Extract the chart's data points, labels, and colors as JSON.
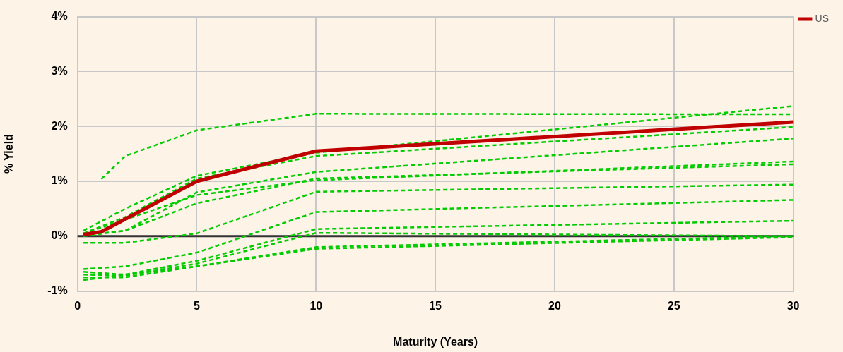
{
  "chart_data": {
    "type": "line",
    "xlabel": "Maturity (Years)",
    "ylabel": "% Yield",
    "xlim": [
      0,
      30
    ],
    "xticks": [
      0,
      5,
      10,
      15,
      20,
      25,
      30
    ],
    "ylim": [
      -1,
      4
    ],
    "yticks": [
      {
        "value": -1,
        "label": "-1%"
      },
      {
        "value": 0,
        "label": "0%"
      },
      {
        "value": 1,
        "label": "1%"
      },
      {
        "value": 2,
        "label": "2%"
      },
      {
        "value": 3,
        "label": "3%"
      },
      {
        "value": 4,
        "label": "4%"
      }
    ],
    "grid": true,
    "legend": "right",
    "marker": "none",
    "ref_lines": [
      {
        "axis": "y",
        "value": 0,
        "color": "#333333"
      }
    ],
    "series": [
      {
        "color": "#00cc00",
        "line_style": "dashed",
        "x": [
          1,
          2,
          5,
          10,
          30
        ],
        "values": [
          1.04,
          1.46,
          1.93,
          2.23,
          2.22
        ]
      },
      {
        "color": "#00cc00",
        "line_style": "dashed",
        "x": [
          0.25,
          2,
          5,
          10,
          30
        ],
        "values": [
          0.1,
          0.5,
          1.1,
          1.52,
          2.37
        ]
      },
      {
        "color": "#00cc00",
        "line_style": "dashed",
        "x": [
          0.25,
          2,
          5,
          10,
          30
        ],
        "values": [
          0.05,
          0.35,
          1.05,
          1.46,
          1.99
        ]
      },
      {
        "color": "#00cc00",
        "line_style": "dashed",
        "x": [
          0.25,
          2,
          5,
          10,
          30
        ],
        "values": [
          0.0,
          0.1,
          0.8,
          1.17,
          1.78
        ]
      },
      {
        "color": "#00cc00",
        "line_style": "dashed",
        "x": [
          0.25,
          2,
          5,
          10,
          30
        ],
        "values": [
          0.05,
          0.3,
          0.75,
          1.02,
          1.36
        ]
      },
      {
        "color": "#00cc00",
        "line_style": "dashed",
        "x": [
          0.25,
          2,
          5,
          10,
          30
        ],
        "values": [
          0.02,
          0.1,
          0.6,
          1.05,
          1.31
        ]
      },
      {
        "color": "#00cc00",
        "line_style": "dashed",
        "x": [
          0.25,
          2,
          5,
          10,
          30
        ],
        "values": [
          -0.12,
          -0.12,
          0.05,
          0.81,
          0.94
        ]
      },
      {
        "color": "#00cc00",
        "line_style": "dashed",
        "x": [
          0.25,
          2,
          5,
          10,
          30
        ],
        "values": [
          -0.6,
          -0.55,
          -0.3,
          0.44,
          0.66
        ]
      },
      {
        "color": "#00cc00",
        "line_style": "dashed",
        "x": [
          0.25,
          2,
          5,
          10,
          30
        ],
        "values": [
          -0.65,
          -0.7,
          -0.45,
          0.13,
          0.28
        ]
      },
      {
        "color": "#00cc00",
        "line_style": "dashed",
        "x": [
          0.25,
          2,
          5,
          10,
          30
        ],
        "values": [
          -0.7,
          -0.72,
          -0.5,
          0.06,
          0.0
        ]
      },
      {
        "color": "#00cc00",
        "line_style": "dashed",
        "x": [
          0.25,
          2,
          5,
          10,
          30
        ],
        "values": [
          -0.75,
          -0.75,
          -0.55,
          -0.2,
          0.0
        ]
      },
      {
        "color": "#00cc00",
        "line_style": "dashed",
        "x": [
          0.25,
          2,
          5,
          10,
          30
        ],
        "values": [
          -0.8,
          -0.7,
          -0.55,
          -0.23,
          -0.02
        ]
      },
      {
        "name": "US",
        "color": "#c00000",
        "line_style": "solid",
        "x": [
          0.25,
          1,
          5,
          10,
          30
        ],
        "values": [
          0.03,
          0.08,
          1.0,
          1.55,
          2.08
        ]
      }
    ]
  }
}
